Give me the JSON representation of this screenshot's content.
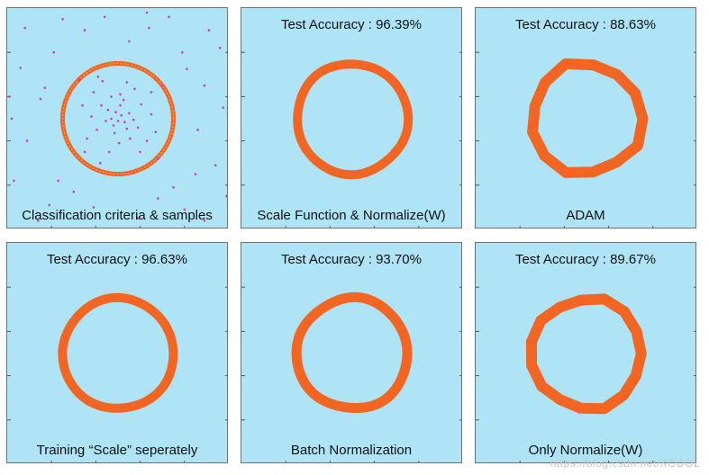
{
  "colors": {
    "panel_bg": "#aee4f5",
    "boundary": "#f26522",
    "samples": "#c83cc8",
    "boundary_ring": "#ffa060"
  },
  "watermark": "https://blog.csdn.net/XCOOL",
  "chart_data": [
    {
      "type": "scatter",
      "caption": "Classification criteria & samples",
      "title": "",
      "boundary_radius": 0.5,
      "xlim": [
        -1,
        1
      ],
      "ylim": [
        -1,
        1
      ],
      "samples": [
        [
          -0.06,
          0.0
        ],
        [
          0.03,
          0.03
        ],
        [
          -0.02,
          0.06
        ],
        [
          0.06,
          -0.03
        ],
        [
          -0.04,
          -0.06
        ],
        [
          0.0,
          -0.02
        ],
        [
          0.1,
          0.05
        ],
        [
          -0.09,
          0.08
        ],
        [
          0.08,
          -0.09
        ],
        [
          -0.11,
          -0.02
        ],
        [
          0.02,
          0.12
        ],
        [
          0.14,
          -0.01
        ],
        [
          -0.03,
          -0.13
        ],
        [
          0.05,
          0.17
        ],
        [
          -0.15,
          0.12
        ],
        [
          0.18,
          -0.08
        ],
        [
          -0.19,
          -0.1
        ],
        [
          0.11,
          -0.18
        ],
        [
          -0.06,
          0.2
        ],
        [
          0.21,
          0.13
        ],
        [
          -0.24,
          0.02
        ],
        [
          0.01,
          -0.22
        ],
        [
          0.26,
          -0.2
        ],
        [
          -0.22,
          0.24
        ],
        [
          0.15,
          0.27
        ],
        [
          -0.28,
          -0.18
        ],
        [
          0.3,
          0.04
        ],
        [
          -0.08,
          -0.3
        ],
        [
          0.08,
          0.33
        ],
        [
          -0.32,
          0.12
        ],
        [
          0.2,
          -0.3
        ],
        [
          0.34,
          -0.12
        ],
        [
          -0.14,
          0.34
        ],
        [
          0.3,
          0.24
        ],
        [
          -0.3,
          -0.3
        ],
        [
          0.02,
          0.22
        ],
        [
          -0.35,
          0.35
        ],
        [
          0.36,
          -0.36
        ],
        [
          -0.18,
          0.38
        ],
        [
          0.4,
          0.3
        ],
        [
          -0.16,
          -0.4
        ],
        [
          0.62,
          0.45
        ],
        [
          -0.58,
          0.6
        ],
        [
          0.72,
          -0.1
        ],
        [
          -0.7,
          0.18
        ],
        [
          0.1,
          0.7
        ],
        [
          0.5,
          -0.62
        ],
        [
          -0.4,
          -0.66
        ],
        [
          0.78,
          0.3
        ],
        [
          -0.82,
          -0.2
        ],
        [
          0.28,
          0.82
        ],
        [
          -0.3,
          0.8
        ],
        [
          0.88,
          -0.42
        ],
        [
          -0.88,
          0.46
        ],
        [
          0.6,
          -0.82
        ],
        [
          -0.62,
          -0.78
        ],
        [
          0.18,
          -0.9
        ],
        [
          -0.12,
          0.92
        ],
        [
          0.92,
          0.64
        ],
        [
          -0.94,
          -0.56
        ],
        [
          0.46,
          0.92
        ],
        [
          -0.5,
          0.9
        ],
        [
          0.95,
          0.1
        ],
        [
          -0.96,
          0.0
        ],
        [
          0.7,
          -0.5
        ],
        [
          -0.66,
          0.28
        ],
        [
          0.36,
          -0.72
        ],
        [
          -0.22,
          -0.8
        ],
        [
          0.82,
          0.8
        ],
        [
          -0.84,
          0.82
        ],
        [
          0.58,
          0.6
        ],
        [
          -0.54,
          -0.56
        ],
        [
          0.98,
          -0.7
        ],
        [
          -0.72,
          -0.92
        ],
        [
          0.26,
          0.96
        ],
        [
          0.78,
          -0.92
        ],
        [
          -0.98,
          0.2
        ]
      ]
    },
    {
      "type": "scatter",
      "title": "Test Accuracy : 96.39%",
      "caption": "Scale Function & Normalize(W)",
      "boundary_radius": 0.5,
      "xlim": [
        -1,
        1
      ],
      "ylim": [
        -1,
        1
      ]
    },
    {
      "type": "scatter",
      "title": "Test Accuracy : 88.63%",
      "caption": "ADAM",
      "boundary_radius": 0.5,
      "xlim": [
        -1,
        1
      ],
      "ylim": [
        -1,
        1
      ]
    },
    {
      "type": "scatter",
      "title": "Test Accuracy : 96.63%",
      "caption": "Training “Scale” seperately",
      "boundary_radius": 0.5,
      "xlim": [
        -1,
        1
      ],
      "ylim": [
        -1,
        1
      ]
    },
    {
      "type": "scatter",
      "title": "Test Accuracy : 93.70%",
      "caption": "Batch Normalization",
      "boundary_radius": 0.5,
      "xlim": [
        -1,
        1
      ],
      "ylim": [
        -1,
        1
      ]
    },
    {
      "type": "scatter",
      "title": "Test Accuracy : 89.67%",
      "caption": "Only Normalize(W)",
      "boundary_radius": 0.5,
      "xlim": [
        -1,
        1
      ],
      "ylim": [
        -1,
        1
      ]
    }
  ]
}
